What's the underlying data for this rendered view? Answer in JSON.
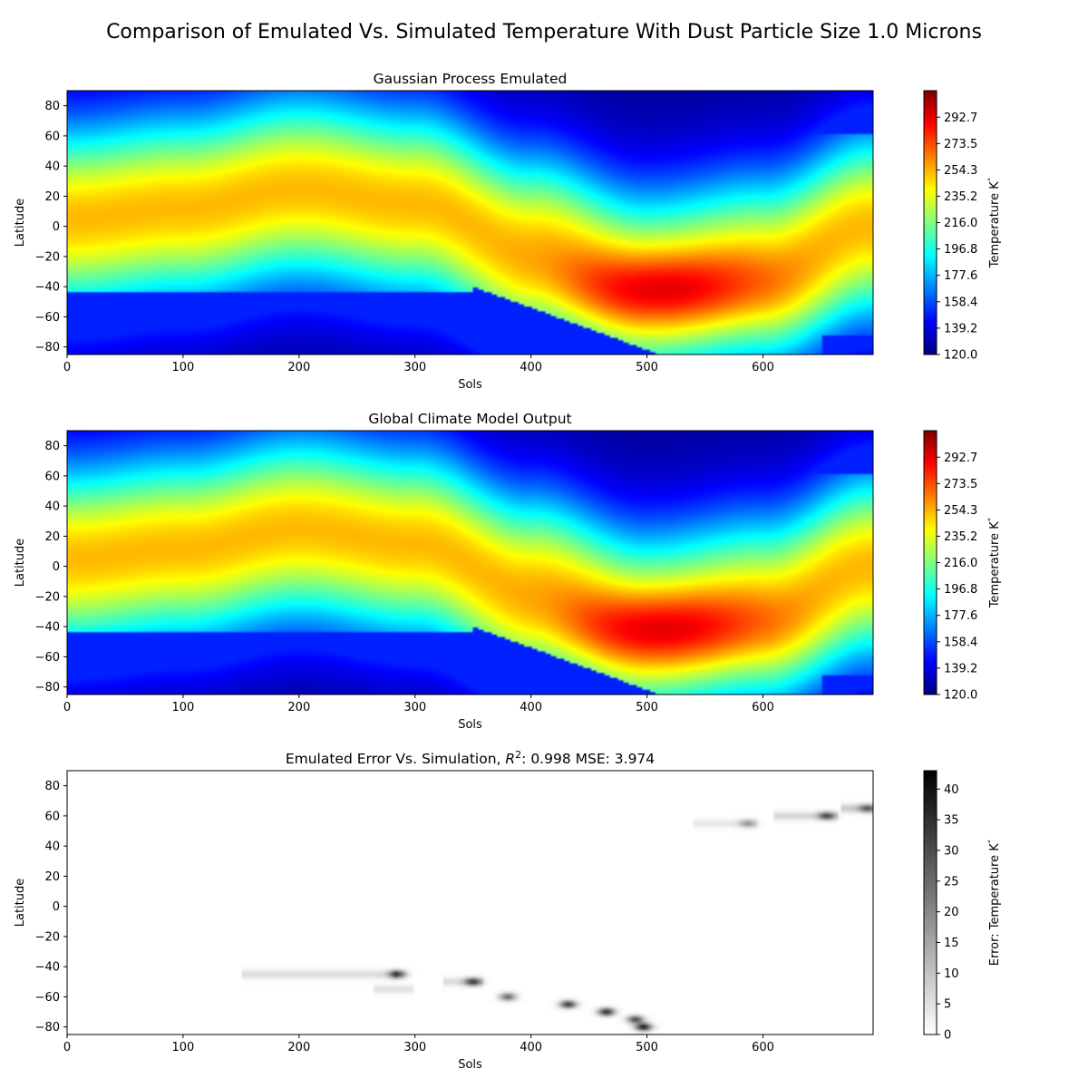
{
  "figure": {
    "title": "Comparison of Emulated Vs. Simulated Temperature With Dust Particle Size 1.0 Microns"
  },
  "colors": {
    "jet_low": "#00007f",
    "jet_high": "#7f0000",
    "gray_low": "#ffffff",
    "gray_high": "#000000"
  },
  "chart_data": [
    {
      "type": "heatmap",
      "title": "Gaussian Process Emulated",
      "xlabel": "Sols",
      "ylabel": "Latitude",
      "xlim": [
        0,
        695
      ],
      "ylim": [
        -85,
        90
      ],
      "xticks": [
        0,
        100,
        200,
        300,
        400,
        500,
        600
      ],
      "yticks": [
        -80,
        -60,
        -40,
        -20,
        0,
        20,
        40,
        60,
        80
      ],
      "colormap": "jet",
      "colorbar": {
        "label": "Temperature K$^{\\circ}$",
        "label_text": "Temperature K",
        "label_sup": "°",
        "min": 120.0,
        "max": 312.0,
        "ticks": [
          "120.0",
          "139.2",
          "158.4",
          "177.6",
          "196.8",
          "216.0",
          "235.2",
          "254.3",
          "273.5",
          "292.7"
        ]
      },
      "field": {
        "warm_band_center_lat_by_sol": [
          [
            0,
            5
          ],
          [
            100,
            12
          ],
          [
            200,
            25
          ],
          [
            300,
            15
          ],
          [
            400,
            -15
          ],
          [
            500,
            -40
          ],
          [
            600,
            -30
          ],
          [
            695,
            0
          ]
        ],
        "peak_temperature": 300,
        "peak_location": {
          "sol": 515,
          "lat": -43
        },
        "polar_cap_temperature": 150
      }
    },
    {
      "type": "heatmap",
      "title": "Global Climate Model Output",
      "xlabel": "Sols",
      "ylabel": "Latitude",
      "xlim": [
        0,
        695
      ],
      "ylim": [
        -85,
        90
      ],
      "xticks": [
        0,
        100,
        200,
        300,
        400,
        500,
        600
      ],
      "yticks": [
        -80,
        -60,
        -40,
        -20,
        0,
        20,
        40,
        60,
        80
      ],
      "colormap": "jet",
      "colorbar": {
        "label": "Temperature K$^{\\circ}$",
        "label_text": "Temperature K",
        "label_sup": "°",
        "min": 120.0,
        "max": 312.0,
        "ticks": [
          "120.0",
          "139.2",
          "158.4",
          "177.6",
          "196.8",
          "216.0",
          "235.2",
          "254.3",
          "273.5",
          "292.7"
        ]
      },
      "field": {
        "warm_band_center_lat_by_sol": [
          [
            0,
            5
          ],
          [
            100,
            12
          ],
          [
            200,
            25
          ],
          [
            300,
            15
          ],
          [
            400,
            -15
          ],
          [
            500,
            -40
          ],
          [
            600,
            -30
          ],
          [
            695,
            0
          ]
        ],
        "peak_temperature": 300,
        "peak_location": {
          "sol": 515,
          "lat": -43
        },
        "polar_cap_temperature": 150
      }
    },
    {
      "type": "heatmap",
      "title_parts": [
        "Emulated Error Vs. Simulation, ",
        "R",
        "2",
        ": 0.998 MSE: 3.974"
      ],
      "r2": 0.998,
      "mse": 3.974,
      "xlabel": "Sols",
      "ylabel": "Latitude",
      "xlim": [
        0,
        695
      ],
      "ylim": [
        -85,
        90
      ],
      "xticks": [
        0,
        100,
        200,
        300,
        400,
        500,
        600
      ],
      "yticks": [
        -80,
        -60,
        -40,
        -20,
        0,
        20,
        40,
        60,
        80
      ],
      "colormap": "gray_r",
      "colorbar": {
        "label": "Error: Temperature K$^{\\circ}$",
        "label_text": "Error: Temperature K",
        "label_sup": "°",
        "min": 0,
        "max": 43,
        "ticks": [
          "0",
          "5",
          "10",
          "15",
          "20",
          "25",
          "30",
          "35",
          "40"
        ]
      },
      "error_spots": [
        {
          "sol": 285,
          "lat": -45,
          "error": 32
        },
        {
          "sol": 350,
          "lat": -50,
          "error": 28
        },
        {
          "sol": 380,
          "lat": -60,
          "error": 25
        },
        {
          "sol": 432,
          "lat": -65,
          "error": 33
        },
        {
          "sol": 465,
          "lat": -70,
          "error": 35
        },
        {
          "sol": 490,
          "lat": -75,
          "error": 30
        },
        {
          "sol": 497,
          "lat": -80,
          "error": 38
        },
        {
          "sol": 587,
          "lat": 55,
          "error": 14
        },
        {
          "sol": 655,
          "lat": 60,
          "error": 25
        },
        {
          "sol": 690,
          "lat": 65,
          "error": 20
        }
      ],
      "error_streaks": [
        {
          "sol_from": 150,
          "sol_to": 285,
          "lat": -45,
          "error": 6
        },
        {
          "sol_from": 265,
          "sol_to": 300,
          "lat": -55,
          "error": 5
        },
        {
          "sol_from": 325,
          "sol_to": 360,
          "lat": -50,
          "error": 6
        },
        {
          "sol_from": 540,
          "sol_to": 595,
          "lat": 55,
          "error": 4
        },
        {
          "sol_from": 610,
          "sol_to": 665,
          "lat": 60,
          "error": 7
        },
        {
          "sol_from": 668,
          "sol_to": 695,
          "lat": 65,
          "error": 9
        }
      ]
    }
  ]
}
